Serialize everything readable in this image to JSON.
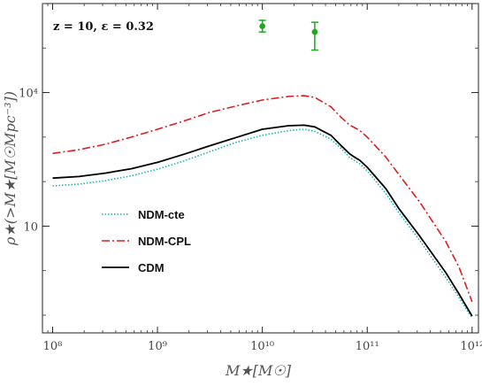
{
  "chart_data": {
    "type": "line",
    "annotation": "z = 10, ε = 0.32",
    "xlabel": "M★[M☉]",
    "ylabel": "ρ★(>M★[M☉Mpc⁻³])",
    "x_scale": "log",
    "y_scale": "log",
    "xlim": [
      80000000.0,
      1150000000000.0
    ],
    "ylim": [
      0.04,
      1000000
    ],
    "x_ticks": [
      {
        "value": 100000000.0,
        "label": "10⁸"
      },
      {
        "value": 1000000000.0,
        "label": "10⁹"
      },
      {
        "value": 10000000000.0,
        "label": "10¹⁰"
      },
      {
        "value": 100000000000.0,
        "label": "10¹¹"
      },
      {
        "value": 1000000000000.0,
        "label": "10¹²"
      }
    ],
    "y_ticks": [
      {
        "value": 10,
        "label": "10"
      },
      {
        "value": 10000,
        "label": "10⁴"
      }
    ],
    "series": [
      {
        "name": "NDM-cte",
        "color": "#19b4b4",
        "style": "dotted",
        "x": [
          100000000.0,
          178000000.0,
          316000000.0,
          562000000.0,
          1000000000.0,
          1780000000.0,
          3160000000.0,
          5620000000.0,
          10000000000.0,
          17800000000.0,
          25000000000.0,
          31600000000.0,
          45000000000.0,
          56200000000.0,
          68000000000.0,
          75000000000.0,
          85000000000.0,
          100000000000.0,
          150000000000.0,
          200000000000.0,
          316000000000.0,
          562000000000.0,
          750000000000.0,
          1000000000000.0
        ],
        "y": [
          80,
          88,
          105,
          135,
          190,
          290,
          470,
          760,
          1100,
          1400,
          1500,
          1350,
          900,
          560,
          350,
          300,
          250,
          175,
          55,
          20,
          4.8,
          0.7,
          0.25,
          0.085
        ]
      },
      {
        "name": "NDM-CPL",
        "color": "#dd1f1f",
        "style": "dashdot",
        "x": [
          100000000.0,
          178000000.0,
          316000000.0,
          562000000.0,
          1000000000.0,
          1780000000.0,
          3160000000.0,
          5620000000.0,
          10000000000.0,
          17800000000.0,
          25000000000.0,
          31600000000.0,
          45000000000.0,
          56200000000.0,
          68000000000.0,
          75000000000.0,
          85000000000.0,
          100000000000.0,
          150000000000.0,
          200000000000.0,
          316000000000.0,
          562000000000.0,
          750000000000.0,
          1000000000000.0
        ],
        "y": [
          430,
          520,
          690,
          1000,
          1500,
          2300,
          3600,
          5000,
          6800,
          8200,
          8500,
          7800,
          4800,
          2800,
          1850,
          1650,
          1400,
          1000,
          360,
          145,
          35,
          4.5,
          1.2,
          0.2
        ]
      },
      {
        "name": "CDM",
        "color": "#000000",
        "style": "solid",
        "x": [
          100000000.0,
          178000000.0,
          316000000.0,
          562000000.0,
          1000000000.0,
          1780000000.0,
          3160000000.0,
          5620000000.0,
          10000000000.0,
          17800000000.0,
          25000000000.0,
          31600000000.0,
          45000000000.0,
          56200000000.0,
          68000000000.0,
          75000000000.0,
          85000000000.0,
          100000000000.0,
          150000000000.0,
          200000000000.0,
          316000000000.0,
          562000000000.0,
          750000000000.0,
          1000000000000.0
        ],
        "y": [
          120,
          130,
          155,
          195,
          270,
          410,
          640,
          980,
          1500,
          1800,
          1850,
          1700,
          1100,
          650,
          420,
          360,
          300,
          210,
          70,
          25,
          6,
          0.9,
          0.3,
          0.095
        ]
      }
    ],
    "points": {
      "color": "#1da81d",
      "data": [
        {
          "x": 10000000000.0,
          "y": 310000,
          "yerr_low": 230000,
          "yerr_high": 420000
        },
        {
          "x": 31600000000.0,
          "y": 230000,
          "yerr_low": 90000,
          "yerr_high": 380000
        }
      ]
    }
  }
}
